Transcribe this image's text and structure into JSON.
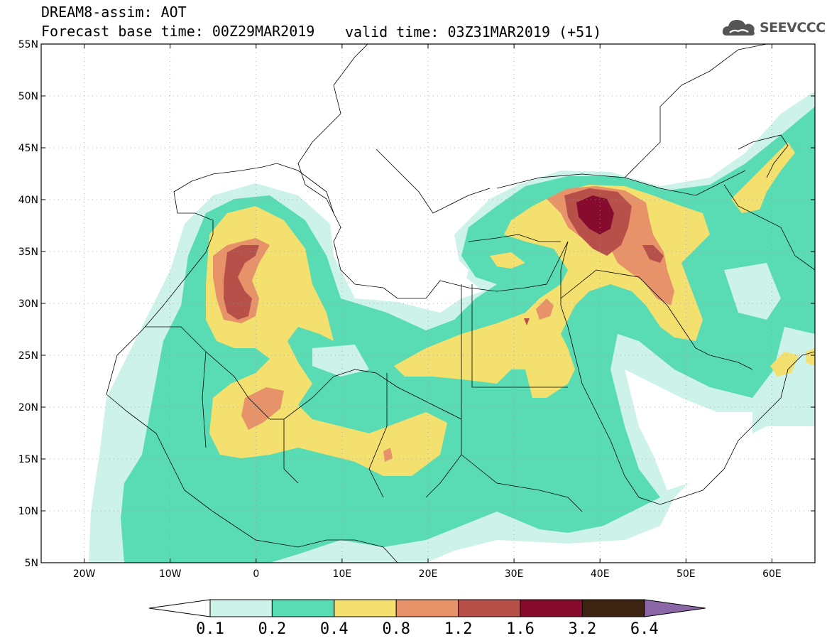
{
  "header": {
    "title": "DREAM8-assim: AOT",
    "base_time": "Forecast base time: 00Z29MAR2019",
    "valid_time": "valid time: 03Z31MAR2019 (+51)",
    "logo_text": "SEEVCCC",
    "logo_icon": "cloud-icon"
  },
  "map": {
    "lon_range": [
      -25,
      65
    ],
    "lat_range": [
      5,
      55
    ],
    "lat_ticks": [
      "5N",
      "10N",
      "15N",
      "20N",
      "25N",
      "30N",
      "35N",
      "40N",
      "45N",
      "50N",
      "55N"
    ],
    "lat_values": [
      5,
      10,
      15,
      20,
      25,
      30,
      35,
      40,
      45,
      50,
      55
    ],
    "lon_ticks": [
      "20W",
      "10W",
      "0",
      "10E",
      "20E",
      "30E",
      "40E",
      "50E",
      "60E"
    ],
    "lon_values": [
      -20,
      -10,
      0,
      10,
      20,
      30,
      40,
      50,
      60
    ],
    "grid": true,
    "colors": {
      "c01": "#cdf2ea",
      "c02": "#59dcb4",
      "c04": "#f3e06e",
      "c08": "#e8926a",
      "c12": "#b8504a",
      "c16": "#860b2e",
      "c32": "#3d2412",
      "c64": "#8b67a8",
      "border": "#000000"
    }
  },
  "colorbar": {
    "labels": [
      "0.1",
      "0.2",
      "0.4",
      "0.8",
      "1.2",
      "1.6",
      "3.2",
      "6.4"
    ],
    "colors": [
      "#cdf2ea",
      "#59dcb4",
      "#f3e06e",
      "#e8926a",
      "#b8504a",
      "#860b2e",
      "#3d2412"
    ],
    "under_color": "#ffffff",
    "over_color": "#8b67a8"
  }
}
